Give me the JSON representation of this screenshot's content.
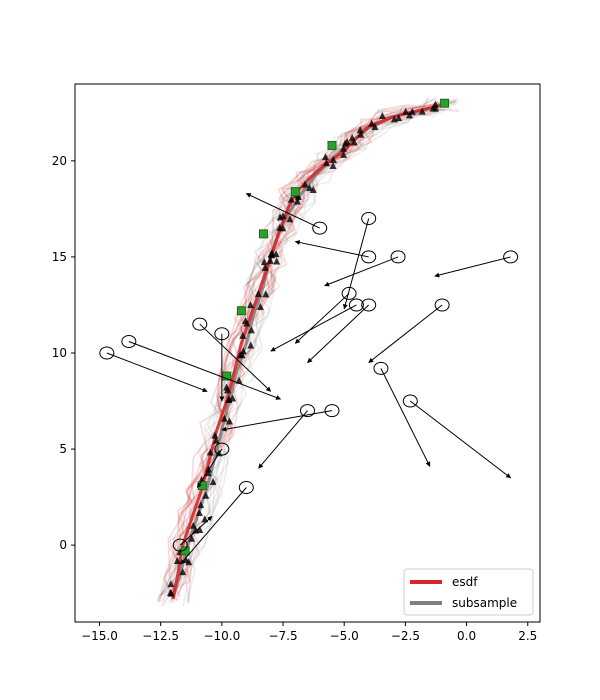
{
  "chart_data": {
    "type": "line",
    "title": "",
    "xlabel": "",
    "ylabel": "",
    "xlim": [
      -16.0,
      3.0
    ],
    "ylim": [
      -4.0,
      24.0
    ],
    "xticks": [
      -15.0,
      -12.5,
      -10.0,
      -7.5,
      -5.0,
      -2.5,
      0.0,
      2.5
    ],
    "yticks": [
      0,
      5,
      10,
      15,
      20
    ],
    "xtick_labels": [
      "−15.0",
      "−12.5",
      "−10.0",
      "−7.5",
      "−5.0",
      "−2.5",
      "0.0",
      "2.5"
    ],
    "ytick_labels": [
      "0",
      "5",
      "10",
      "15",
      "20"
    ],
    "grid": false,
    "legend_position": "lower-right",
    "series": [
      {
        "name": "esdf",
        "color": "#d62728",
        "points": [
          [
            -12,
            -2.8
          ],
          [
            -11.8,
            -1.5
          ],
          [
            -11.6,
            0
          ],
          [
            -11.2,
            1.5
          ],
          [
            -10.8,
            3
          ],
          [
            -10.5,
            4.5
          ],
          [
            -10.2,
            6
          ],
          [
            -9.8,
            7.5
          ],
          [
            -9.5,
            9
          ],
          [
            -9.2,
            10.5
          ],
          [
            -8.8,
            12
          ],
          [
            -8.4,
            13.5
          ],
          [
            -8.0,
            15
          ],
          [
            -7.6,
            16.5
          ],
          [
            -7.3,
            17.5
          ],
          [
            -7.0,
            18.3
          ],
          [
            -6.5,
            19
          ],
          [
            -5.8,
            19.8
          ],
          [
            -5.0,
            20.5
          ],
          [
            -4.5,
            21.2
          ],
          [
            -4.0,
            21.8
          ],
          [
            -3.0,
            22.3
          ],
          [
            -2.0,
            22.6
          ],
          [
            -1.0,
            22.9
          ]
        ]
      },
      {
        "name": "subsample",
        "color": "#7f7f7f",
        "points": [
          [
            -12,
            -2.8
          ],
          [
            -11.7,
            -1.5
          ],
          [
            -11.4,
            0
          ],
          [
            -11.0,
            1.5
          ],
          [
            -10.6,
            3
          ],
          [
            -10.3,
            4.5
          ],
          [
            -10.0,
            6
          ],
          [
            -9.7,
            7.5
          ],
          [
            -9.4,
            9
          ],
          [
            -9.0,
            10.5
          ],
          [
            -8.7,
            12
          ],
          [
            -8.3,
            13.5
          ],
          [
            -8.0,
            15
          ],
          [
            -7.7,
            16.2
          ],
          [
            -7.3,
            17.2
          ],
          [
            -6.8,
            18.2
          ],
          [
            -6.2,
            19.2
          ],
          [
            -5.5,
            20.1
          ],
          [
            -4.8,
            20.9
          ],
          [
            -4.0,
            21.7
          ],
          [
            -3.0,
            22.3
          ],
          [
            -2.0,
            22.6
          ],
          [
            -1.0,
            22.9
          ]
        ]
      }
    ],
    "anchors": [
      [
        -11.5,
        -0.3
      ],
      [
        -10.8,
        3.1
      ],
      [
        -9.8,
        8.8
      ],
      [
        -9.2,
        12.2
      ],
      [
        -8.3,
        16.2
      ],
      [
        -7.0,
        18.4
      ],
      [
        -5.5,
        20.8
      ],
      [
        -0.9,
        23.0
      ]
    ],
    "arrows": [
      {
        "from": [
          -6.0,
          16.5
        ],
        "to": [
          -9.0,
          18.3
        ]
      },
      {
        "from": [
          -4.0,
          17.0
        ],
        "to": [
          -5.0,
          12.3
        ]
      },
      {
        "from": [
          -4.0,
          15.0
        ],
        "to": [
          -7.0,
          15.8
        ]
      },
      {
        "from": [
          -2.8,
          15.0
        ],
        "to": [
          -5.8,
          13.5
        ]
      },
      {
        "from": [
          1.8,
          15.0
        ],
        "to": [
          -1.3,
          14.0
        ]
      },
      {
        "from": [
          -4.8,
          13.1
        ],
        "to": [
          -7.0,
          10.5
        ]
      },
      {
        "from": [
          -4.5,
          12.5
        ],
        "to": [
          -8.0,
          10.1
        ]
      },
      {
        "from": [
          -4.0,
          12.5
        ],
        "to": [
          -6.5,
          9.5
        ]
      },
      {
        "from": [
          -1.0,
          12.5
        ],
        "to": [
          -4.0,
          9.5
        ]
      },
      {
        "from": [
          -3.5,
          9.2
        ],
        "to": [
          -1.5,
          4.1
        ]
      },
      {
        "from": [
          -2.3,
          7.5
        ],
        "to": [
          1.8,
          3.5
        ]
      },
      {
        "from": [
          -13.8,
          10.6
        ],
        "to": [
          -7.6,
          7.6
        ]
      },
      {
        "from": [
          -14.7,
          10.0
        ],
        "to": [
          -10.6,
          8.0
        ]
      },
      {
        "from": [
          -10.9,
          11.5
        ],
        "to": [
          -8.0,
          8.0
        ]
      },
      {
        "from": [
          -10.0,
          11.0
        ],
        "to": [
          -10.0,
          7.5
        ]
      },
      {
        "from": [
          -5.5,
          7.0
        ],
        "to": [
          -10.0,
          6.0
        ]
      },
      {
        "from": [
          -6.5,
          7.0
        ],
        "to": [
          -8.5,
          4.0
        ]
      },
      {
        "from": [
          -10.0,
          5.0
        ],
        "to": [
          -11.0,
          3.0
        ]
      },
      {
        "from": [
          -9.0,
          3.0
        ],
        "to": [
          -11.7,
          -1.0
        ]
      },
      {
        "from": [
          -11.7,
          0.0
        ],
        "to": [
          -10.4,
          1.5
        ]
      }
    ]
  }
}
